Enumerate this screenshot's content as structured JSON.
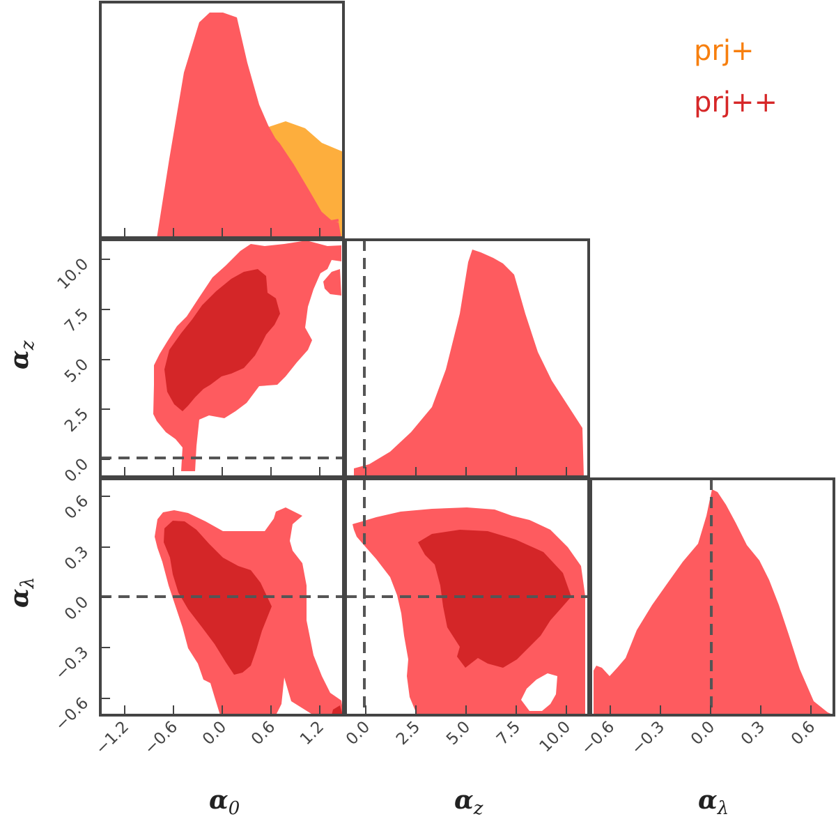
{
  "legend": [
    {
      "label": "prj+",
      "color": "#f77f0e"
    },
    {
      "label": "prj++",
      "color": "#d62728"
    }
  ],
  "colors": {
    "prj_plus_fill": "#fdae3d",
    "prj_pp_outer": "#fe5b5f",
    "prj_pp_inner": "#d42628",
    "frame": "#444444",
    "reference_line": "#555555"
  },
  "parameters": [
    {
      "symbol": "α",
      "sub": "0"
    },
    {
      "symbol": "α",
      "sub": "z"
    },
    {
      "symbol": "α",
      "sub": "λ"
    }
  ],
  "chart_data": {
    "type": "corner",
    "title": "",
    "parameters": [
      "α_0",
      "α_z",
      "α_λ"
    ],
    "ranges": {
      "alpha_0": [
        -1.4,
        1.6
      ],
      "alpha_z": [
        -0.4,
        11.1
      ],
      "alpha_lambda": [
        -0.68,
        0.7
      ]
    },
    "ticks": {
      "alpha_0": [
        -1.2,
        -0.6,
        0.0,
        0.6,
        1.2
      ],
      "alpha_z": [
        0.0,
        2.5,
        5.0,
        7.5,
        10.0
      ],
      "alpha_lambda": [
        -0.6,
        -0.3,
        0.0,
        0.3,
        0.6
      ]
    },
    "tick_labels": {
      "alpha_0": [
        "−1.2",
        "−0.6",
        "0.0",
        "0.6",
        "1.2"
      ],
      "alpha_z": [
        "0.0",
        "2.5",
        "5.0",
        "7.5",
        "10.0"
      ],
      "alpha_lambda": [
        "−0.6",
        "−0.3",
        "0.0",
        "0.3",
        "0.6"
      ]
    },
    "reference_values": {
      "alpha_0": null,
      "alpha_z": 0.0,
      "alpha_lambda": 0.0
    },
    "marginals": {
      "alpha_0": [
        {
          "series": "prj++",
          "x": [
            -0.8,
            -0.65,
            -0.5,
            -0.35,
            -0.2,
            -0.05,
            0.1,
            0.25,
            0.4,
            0.55,
            0.7,
            0.85,
            1.0,
            1.15,
            1.3,
            1.45,
            1.55
          ],
          "density": [
            0.0,
            0.35,
            0.7,
            0.95,
            0.99,
            0.97,
            0.82,
            0.62,
            0.48,
            0.44,
            0.36,
            0.27,
            0.18,
            0.1,
            0.04,
            0.01,
            0.0
          ]
        },
        {
          "series": "prj+",
          "x": [
            -0.4,
            -0.2,
            0.0,
            0.2,
            0.4,
            0.6,
            0.8,
            1.0,
            1.2,
            1.4,
            1.6
          ],
          "density": [
            0.0,
            0.12,
            0.25,
            0.37,
            0.46,
            0.5,
            0.52,
            0.51,
            0.48,
            0.43,
            0.38
          ]
        }
      ],
      "alpha_z": [
        {
          "series": "prj++",
          "x": [
            0.0,
            1.0,
            2.0,
            3.0,
            4.0,
            5.0,
            5.5,
            6.0,
            7.0,
            8.0,
            9.0,
            10.0,
            10.8
          ],
          "density": [
            0.0,
            0.04,
            0.12,
            0.28,
            0.55,
            0.86,
            1.0,
            0.99,
            0.93,
            0.72,
            0.45,
            0.27,
            0.15
          ]
        }
      ],
      "alpha_lambda": [
        {
          "series": "prj++",
          "x": [
            -0.68,
            -0.6,
            -0.5,
            -0.4,
            -0.3,
            -0.2,
            -0.1,
            0.0,
            0.05,
            0.1,
            0.2,
            0.3,
            0.4,
            0.5,
            0.6,
            0.68
          ],
          "density": [
            0.18,
            0.16,
            0.25,
            0.38,
            0.55,
            0.7,
            0.81,
            0.92,
            1.0,
            0.96,
            0.8,
            0.66,
            0.42,
            0.16,
            0.04,
            0.01
          ]
        }
      ]
    },
    "joint_contours": [
      {
        "params": [
          "alpha_0",
          "alpha_z"
        ],
        "series": "prj++",
        "outer_68": [
          [
            -0.38,
            3.6
          ],
          [
            -0.5,
            4.6
          ],
          [
            -0.46,
            5.8
          ],
          [
            -0.2,
            7.4
          ],
          [
            0.2,
            9.1
          ],
          [
            0.55,
            9.9
          ],
          [
            0.74,
            9.7
          ],
          [
            0.78,
            8.1
          ],
          [
            0.62,
            7.0
          ],
          [
            0.36,
            5.6
          ],
          [
            0.05,
            4.4
          ],
          [
            -0.25,
            3.5
          ]
        ],
        "outer_95": [
          [
            -0.22,
            0.4
          ],
          [
            -0.3,
            2.0
          ],
          [
            -0.46,
            2.7
          ],
          [
            -0.68,
            3.3
          ],
          [
            -0.67,
            4.6
          ],
          [
            -0.35,
            7.0
          ],
          [
            0.0,
            9.4
          ],
          [
            0.5,
            10.4
          ],
          [
            0.95,
            10.6
          ],
          [
            1.3,
            10.9
          ],
          [
            1.38,
            10.3
          ],
          [
            1.22,
            9.0
          ],
          [
            1.0,
            6.6
          ],
          [
            0.82,
            4.8
          ],
          [
            0.7,
            4.0
          ],
          [
            0.4,
            2.8
          ],
          [
            0.1,
            2.6
          ],
          [
            -0.2,
            1.8
          ],
          [
            -0.15,
            0.4
          ]
        ]
      },
      {
        "params": [
          "alpha_0",
          "alpha_lambda"
        ],
        "series": "prj++",
        "outer_68": [
          [
            -0.5,
            0.35
          ],
          [
            -0.4,
            0.1
          ],
          [
            -0.2,
            -0.15
          ],
          [
            0.0,
            -0.3
          ],
          [
            0.25,
            -0.4
          ],
          [
            0.5,
            -0.25
          ],
          [
            0.55,
            0.02
          ],
          [
            0.45,
            0.22
          ],
          [
            0.0,
            0.38
          ],
          [
            -0.35,
            0.48
          ]
        ],
        "outer_95": [
          [
            -0.7,
            0.5
          ],
          [
            -0.65,
            0.0
          ],
          [
            -0.3,
            -0.4
          ],
          [
            0.0,
            -0.6
          ],
          [
            0.6,
            -0.68
          ],
          [
            1.3,
            -0.66
          ],
          [
            1.0,
            -0.4
          ],
          [
            0.8,
            -0.1
          ],
          [
            0.7,
            0.15
          ],
          [
            1.15,
            0.25
          ],
          [
            1.35,
            0.55
          ],
          [
            0.95,
            0.58
          ],
          [
            0.6,
            0.4
          ],
          [
            0.0,
            0.45
          ],
          [
            -0.4,
            0.58
          ]
        ]
      },
      {
        "params": [
          "alpha_z",
          "alpha_lambda"
        ],
        "series": "prj++",
        "outer_68": [
          [
            3.5,
            0.2
          ],
          [
            5.0,
            -0.1
          ],
          [
            5.3,
            -0.4
          ],
          [
            6.5,
            -0.42
          ],
          [
            8.0,
            -0.28
          ],
          [
            9.0,
            -0.02
          ],
          [
            8.8,
            0.25
          ],
          [
            7.0,
            0.35
          ],
          [
            5.0,
            0.38
          ],
          [
            3.8,
            0.35
          ]
        ],
        "outer_95": [
          [
            0.0,
            0.3
          ],
          [
            1.0,
            0.4
          ],
          [
            2.5,
            0.32
          ],
          [
            3.0,
            0.0
          ],
          [
            3.2,
            -0.4
          ],
          [
            4.5,
            -0.6
          ],
          [
            6.8,
            -0.68
          ],
          [
            9.5,
            -0.64
          ],
          [
            10.7,
            -0.62
          ],
          [
            10.7,
            0.25
          ],
          [
            9.2,
            0.3
          ],
          [
            8.3,
            0.48
          ],
          [
            7.0,
            0.45
          ],
          [
            4.0,
            0.5
          ],
          [
            1.5,
            0.48
          ]
        ]
      }
    ]
  }
}
